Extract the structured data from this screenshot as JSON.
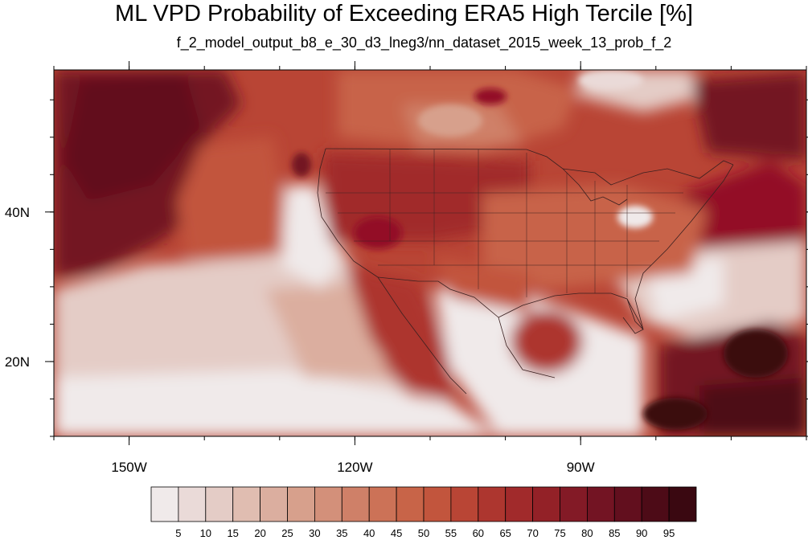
{
  "title": "ML VPD Probability of Exceeding ERA5 High Tercile [%]",
  "subtitle": "f_2_model_output_b8_e_30_d3_lneg3/nn_dataset_2015_week_13_prob_f_2",
  "map": {
    "lon_range": [
      -160,
      -60
    ],
    "lat_range": [
      10,
      59
    ],
    "lon_ticks": [
      {
        "value": -150,
        "label": "150W"
      },
      {
        "value": -120,
        "label": "120W"
      },
      {
        "value": -90,
        "label": "90W"
      }
    ],
    "lat_ticks": [
      {
        "value": 40,
        "label": "40N"
      },
      {
        "value": 20,
        "label": "20N"
      }
    ]
  },
  "colorbar": {
    "levels": [
      "5",
      "10",
      "15",
      "20",
      "25",
      "30",
      "35",
      "40",
      "45",
      "50",
      "55",
      "60",
      "65",
      "70",
      "75",
      "80",
      "85",
      "90",
      "95"
    ],
    "colors": [
      "#f0eaea",
      "#eadad8",
      "#e4ccc6",
      "#e0bdb1",
      "#dbae9f",
      "#d7a08c",
      "#d3907a",
      "#cf8068",
      "#cc7257",
      "#c86448",
      "#c2553d",
      "#b94535",
      "#ad362f",
      "#a12a2b",
      "#932127",
      "#831a26",
      "#731423",
      "#620f1e",
      "#4d0b17",
      "#3a0811"
    ]
  }
}
